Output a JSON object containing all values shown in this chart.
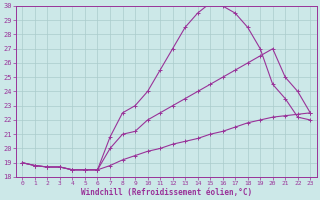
{
  "xlabel": "Windchill (Refroidissement éolien,°C)",
  "bg_color": "#cce8e8",
  "grid_color": "#aacccc",
  "line_color": "#993399",
  "xlim": [
    -0.5,
    23.5
  ],
  "ylim": [
    18,
    30
  ],
  "xticks": [
    0,
    1,
    2,
    3,
    4,
    5,
    6,
    7,
    8,
    9,
    10,
    11,
    12,
    13,
    14,
    15,
    16,
    17,
    18,
    19,
    20,
    21,
    22,
    23
  ],
  "yticks": [
    18,
    19,
    20,
    21,
    22,
    23,
    24,
    25,
    26,
    27,
    28,
    29,
    30
  ],
  "curve1_x": [
    0,
    1,
    2,
    3,
    4,
    5,
    6,
    7,
    8,
    9,
    10,
    11,
    12,
    13,
    14,
    15,
    16,
    17,
    18,
    19,
    20,
    21,
    22,
    23
  ],
  "curve1_y": [
    19.0,
    18.8,
    18.7,
    18.7,
    18.5,
    18.5,
    18.5,
    18.8,
    19.2,
    19.5,
    19.8,
    20.0,
    20.3,
    20.5,
    20.7,
    21.0,
    21.2,
    21.5,
    21.8,
    22.0,
    22.2,
    22.3,
    22.4,
    22.5
  ],
  "curve2_x": [
    0,
    1,
    2,
    3,
    4,
    5,
    6,
    7,
    8,
    9,
    10,
    11,
    12,
    13,
    14,
    15,
    16,
    17,
    18,
    19,
    20,
    21,
    22,
    23
  ],
  "curve2_y": [
    19.0,
    18.8,
    18.7,
    18.7,
    18.5,
    18.5,
    18.5,
    20.0,
    21.0,
    21.2,
    22.0,
    22.5,
    23.0,
    23.5,
    24.0,
    24.5,
    25.0,
    25.5,
    26.0,
    26.5,
    27.0,
    25.0,
    24.0,
    22.5
  ],
  "curve3_x": [
    0,
    1,
    2,
    3,
    4,
    5,
    6,
    7,
    8,
    9,
    10,
    11,
    12,
    13,
    14,
    15,
    16,
    17,
    18,
    19,
    20,
    21,
    22,
    23
  ],
  "curve3_y": [
    19.0,
    18.8,
    18.7,
    18.7,
    18.5,
    18.5,
    18.5,
    20.8,
    22.5,
    23.0,
    24.0,
    25.5,
    27.0,
    28.5,
    29.5,
    30.2,
    30.0,
    29.5,
    28.5,
    27.0,
    24.5,
    23.5,
    22.2,
    22.0
  ]
}
